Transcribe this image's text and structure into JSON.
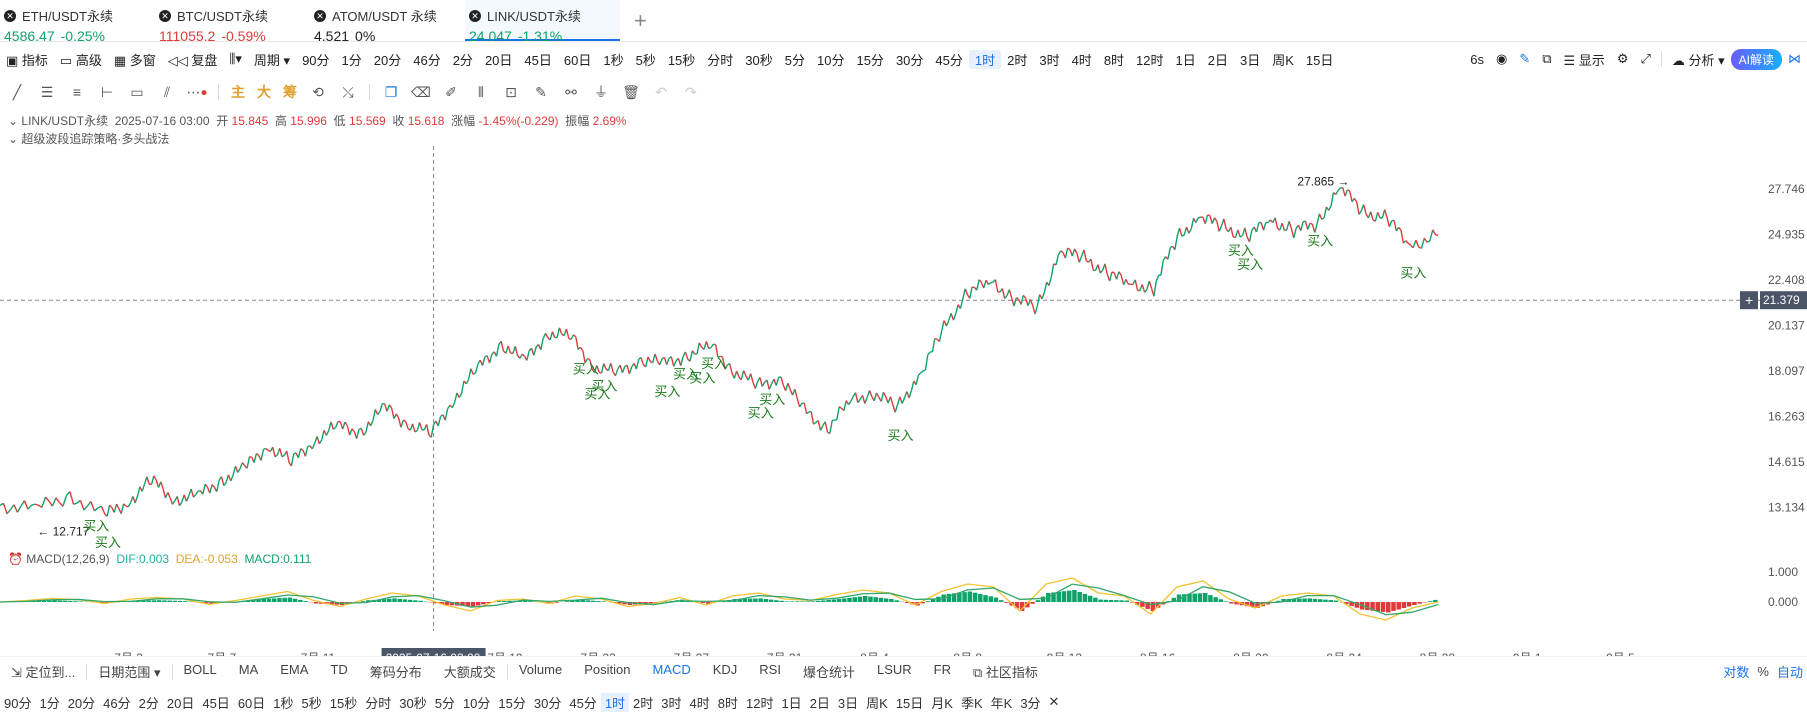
{
  "tabs": [
    {
      "name": "ETH/USDT永续",
      "price": "4586.47",
      "change": "-0.25%",
      "dir": "up"
    },
    {
      "name": "BTC/USDT永续",
      "price": "111055.2",
      "change": "-0.59%",
      "dir": "down"
    },
    {
      "name": "ATOM/USDT 永续",
      "price": "4.521",
      "change": "0%",
      "dir": "flat"
    },
    {
      "name": "LINK/USDT永续",
      "price": "24.047",
      "change": "-1.31%",
      "dir": "up"
    }
  ],
  "toolbar": {
    "indicators": "指标",
    "advanced": "高级",
    "multi_window": "多窗",
    "replay": "复盘",
    "period": "周期",
    "periods": [
      "90分",
      "1分",
      "20分",
      "46分",
      "2分",
      "20日",
      "45日",
      "60日",
      "1秒",
      "5秒",
      "15秒",
      "分时",
      "30秒",
      "5分",
      "10分",
      "15分",
      "30分",
      "45分",
      "1时",
      "2时",
      "3时",
      "4时",
      "8时",
      "12时",
      "1日",
      "2日",
      "3日",
      "周K",
      "15日"
    ],
    "selected_period": "1时",
    "countdown": "6s",
    "display": "显示",
    "analysis": "分析",
    "ai": "AI解读"
  },
  "draw_tools": {
    "main": "主",
    "big": "大",
    "chips": "筹"
  },
  "info": {
    "symbol": "LINK/USDT永续",
    "time": "2025-07-16 03:00",
    "open_label": "开",
    "open": "15.845",
    "high_label": "高",
    "high": "15.996",
    "low_label": "低",
    "low": "15.569",
    "close_label": "收",
    "close": "15.618",
    "change_label": "涨幅",
    "change": "-1.45%(-0.229)",
    "amp_label": "振幅",
    "amp": "2.69%",
    "strategy": "超级波段追踪策略·多头战法"
  },
  "macd": {
    "label": "MACD(12,26,9)",
    "dif": "DIF:0.003",
    "dea": "DEA:-0.053",
    "macd": "MACD:0.111"
  },
  "chart_data": {
    "type": "line",
    "title": "LINK/USDT永续 1时",
    "y_ticks": [
      "27.746",
      "24.935",
      "22.408",
      "20.137",
      "18.097",
      "16.263",
      "14.615",
      "13.134"
    ],
    "y_tick_values": [
      27.746,
      24.935,
      22.408,
      20.137,
      18.097,
      16.263,
      14.615,
      13.134
    ],
    "ylim": [
      12.0,
      30.0
    ],
    "x_ticks": [
      "7月 3",
      "7月 7",
      "7月 11",
      "7月 19",
      "7月 23",
      "7月 27",
      "7月 31",
      "8月 4",
      "8月 8",
      "8月 12",
      "8月 16",
      "8月 20",
      "8月 24",
      "8月 28",
      "9月 1",
      "9月 5"
    ],
    "x_tick_days": [
      3,
      7,
      11,
      19,
      23,
      27,
      31,
      35,
      39,
      43,
      47,
      51,
      55,
      59,
      63,
      67
    ],
    "xlim_days": [
      -2.5,
      73.0
    ],
    "crosshair_label": "2025-07-16 03:00",
    "crosshair_day": 16.1,
    "current_price": "21.379",
    "current_price_value": 21.379,
    "series": [
      {
        "name": "LINK/USDT close (approx.)",
        "x_days": [
          -2.5,
          -1,
          0.5,
          2,
          3,
          4,
          5,
          6,
          7,
          8,
          9,
          10,
          11,
          12,
          13,
          14,
          15,
          16,
          17,
          18,
          19,
          20,
          21,
          22,
          23,
          24,
          25,
          26,
          27,
          28,
          29,
          30,
          31,
          32,
          33,
          34,
          35,
          36,
          37,
          38,
          39,
          40,
          41,
          42,
          43,
          44,
          45,
          46,
          47,
          48,
          49,
          50,
          51,
          52,
          53,
          54,
          55,
          56,
          57,
          58,
          59.2
        ],
        "values": [
          13.2,
          13.1,
          13.5,
          12.9,
          13.3,
          14.0,
          13.4,
          13.5,
          14.0,
          14.4,
          15.2,
          14.6,
          15.4,
          15.9,
          15.7,
          16.6,
          16.0,
          15.6,
          17.0,
          18.2,
          19.3,
          18.5,
          19.8,
          19.6,
          18.3,
          18.0,
          18.6,
          18.4,
          18.8,
          19.2,
          18.1,
          17.5,
          17.8,
          16.5,
          15.8,
          16.9,
          17.2,
          16.6,
          18.0,
          20.0,
          21.8,
          22.3,
          21.5,
          21.0,
          24.0,
          23.6,
          22.8,
          22.2,
          22.0,
          24.8,
          26.0,
          25.4,
          24.8,
          25.8,
          25.2,
          25.6,
          27.865,
          26.3,
          25.9,
          24.3,
          24.9
        ]
      }
    ],
    "annotations": [
      {
        "text": "27.865",
        "day": 55.3,
        "value": 27.865,
        "kind": "max"
      },
      {
        "text": "12.717",
        "day": -1.5,
        "value": 12.717,
        "kind": "min"
      }
    ],
    "buy_signals": {
      "label": "买入",
      "days": [
        1.5,
        2,
        22.5,
        23,
        23.3,
        26,
        26.8,
        27.5,
        28,
        30,
        30.5,
        36,
        50.6,
        51,
        54,
        58
      ]
    },
    "macd_series": {
      "dif": [
        0,
        0.05,
        0.12,
        0.08,
        -0.05,
        0.1,
        0.15,
        0.1,
        -0.08,
        0.05,
        0.2,
        0.35,
        0.05,
        -0.15,
        0.1,
        0.3,
        0.2,
        -0.1,
        -0.3,
        0.05,
        0.1,
        -0.05,
        0.2,
        0.1,
        -0.15,
        -0.05,
        0.15,
        -0.1,
        0.2,
        0.3,
        0.1,
        0.05,
        0.25,
        0.4,
        0.3,
        -0.1,
        0.35,
        0.6,
        0.5,
        -0.3,
        0.6,
        0.8,
        0.3,
        0.2,
        -0.4,
        0.5,
        0.7,
        0.1,
        -0.2,
        0.2,
        0.3,
        0.2,
        -0.4,
        -0.6,
        -0.2,
        0.003
      ],
      "hist": [
        0,
        0.03,
        0.05,
        0.02,
        -0.04,
        0.04,
        0.06,
        0.03,
        -0.06,
        0.02,
        0.1,
        0.15,
        -0.05,
        -0.1,
        0.06,
        0.12,
        0.04,
        -0.1,
        -0.15,
        0.03,
        0.05,
        -0.05,
        0.08,
        0.02,
        -0.1,
        -0.03,
        0.08,
        -0.06,
        0.1,
        0.12,
        0.02,
        0.02,
        0.1,
        0.2,
        0.1,
        -0.12,
        0.25,
        0.35,
        0.15,
        -0.3,
        0.3,
        0.4,
        0.08,
        0.05,
        -0.3,
        0.25,
        0.3,
        -0.05,
        -0.2,
        0.1,
        0.12,
        0.05,
        -0.25,
        -0.35,
        -0.1,
        0.111
      ],
      "y_ticks": [
        "1.000",
        "0.000"
      ],
      "y_tick_values": [
        1.0,
        0.0
      ],
      "ylim": [
        -0.8,
        1.2
      ]
    }
  },
  "bottom_bar": {
    "locate": "定位到...",
    "date_range": "日期范围",
    "indicators": [
      "BOLL",
      "MA",
      "EMA",
      "TD",
      "筹码分布",
      "大额成交"
    ],
    "sub_indicators": [
      "Volume",
      "Position",
      "MACD",
      "KDJ",
      "RSI",
      "爆仓统计",
      "LSUR",
      "FR"
    ],
    "selected_sub": "MACD",
    "community": "社区指标",
    "log": "对数",
    "pct": "%",
    "auto": "自动"
  },
  "period_bar": {
    "items": [
      "90分",
      "1分",
      "20分",
      "46分",
      "2分",
      "20日",
      "45日",
      "60日",
      "1秒",
      "5秒",
      "15秒",
      "分时",
      "30秒",
      "5分",
      "10分",
      "15分",
      "30分",
      "45分",
      "1时",
      "2时",
      "3时",
      "4时",
      "8时",
      "12时",
      "1日",
      "2日",
      "3日",
      "周K",
      "15日",
      "月K",
      "季K",
      "年K",
      "3分"
    ],
    "selected": "1时"
  },
  "colors": {
    "up": "#0fa36b",
    "down": "#e03a3a",
    "dif": "#f2c230",
    "dea": "#2fa86a",
    "accent": "#1a73e8",
    "buy": "#1a7a1a"
  }
}
